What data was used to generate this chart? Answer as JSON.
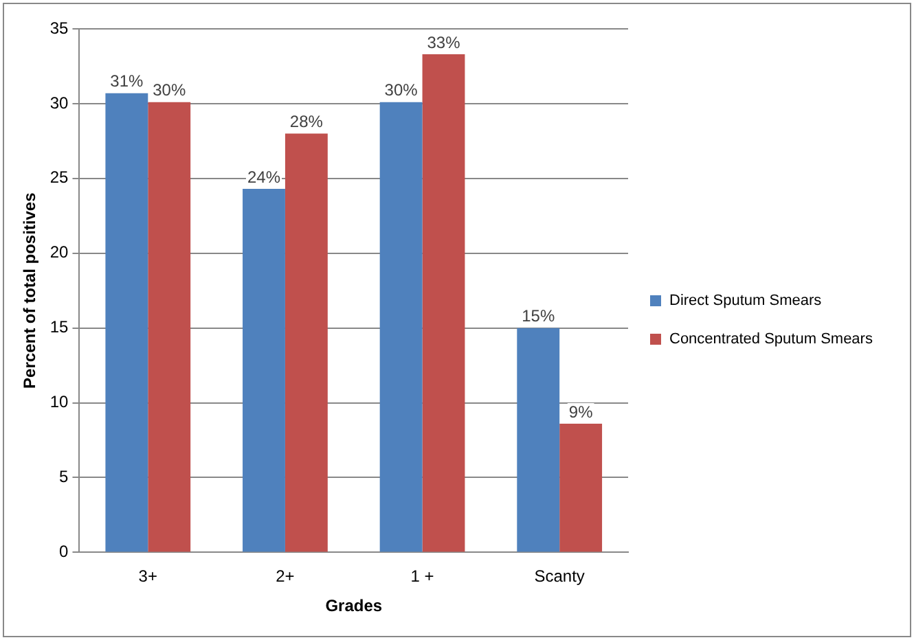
{
  "chart_data": {
    "type": "bar",
    "xlabel": "Grades",
    "ylabel": "Percent of total positives",
    "categories": [
      "3+",
      "2+",
      "1 +",
      "Scanty"
    ],
    "series": [
      {
        "name": "Direct Sputum Smears",
        "color": "#4f81bd",
        "values": [
          30.7,
          24.3,
          30.1,
          15.0
        ],
        "value_labels": [
          "31%",
          "24%",
          "30%",
          "15%"
        ]
      },
      {
        "name": "Concentrated Sputum Smears",
        "color": "#c0504d",
        "values": [
          30.1,
          28.0,
          33.3,
          8.6
        ],
        "value_labels": [
          "30%",
          "28%",
          "33%",
          "9%"
        ]
      }
    ],
    "ylim": [
      0,
      35
    ],
    "yticks": [
      0,
      5,
      10,
      15,
      20,
      25,
      30,
      35
    ],
    "grid": "y",
    "legend": "right"
  }
}
